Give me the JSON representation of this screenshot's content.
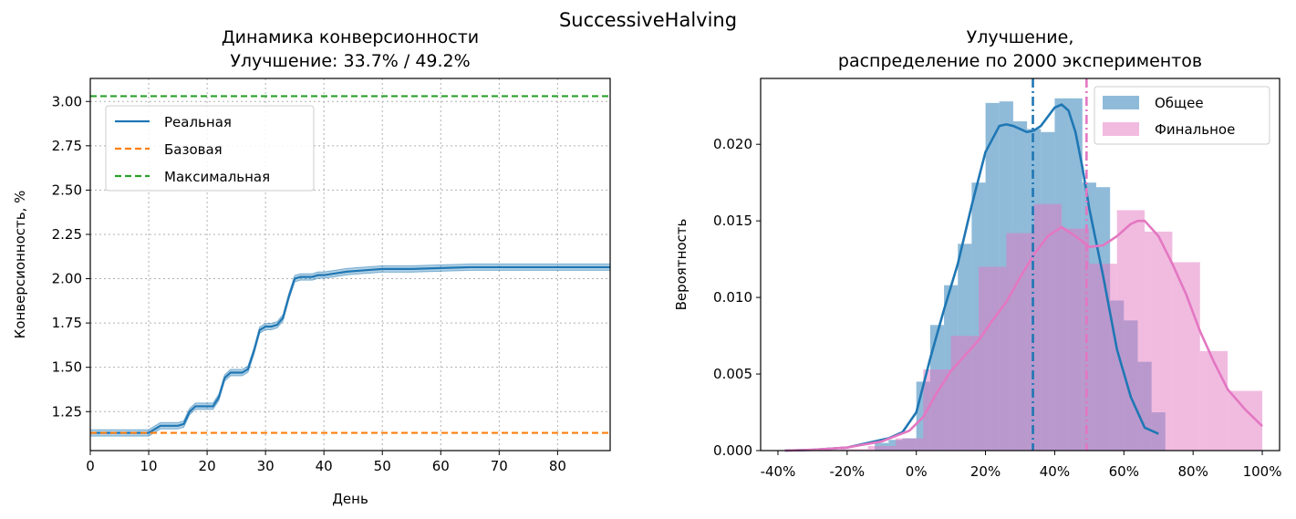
{
  "suptitle": "SuccessiveHalving",
  "colors": {
    "real": "#1f77b4",
    "base": "#ff7f0e",
    "max": "#2ca02c",
    "overall": "#1f77b4",
    "final": "#e377c2"
  },
  "chart_data": [
    {
      "type": "line",
      "title": "Динамика конверсионности",
      "subtitle": "Улучшение: 33.7% / 49.2%",
      "xlabel": "День",
      "ylabel": "Конверсионность, %",
      "xlim": [
        0,
        89
      ],
      "ylim": [
        1.03,
        3.13
      ],
      "xticks": [
        0,
        10,
        20,
        30,
        40,
        50,
        60,
        70,
        80
      ],
      "yticks": [
        "1.25",
        "1.50",
        "1.75",
        "2.00",
        "2.25",
        "2.50",
        "2.75",
        "3.00"
      ],
      "grid": true,
      "legend_position": "upper-left",
      "series": [
        {
          "name": "Реальная",
          "style": "solid",
          "color": "#1f77b4",
          "x": [
            0,
            2,
            4,
            6,
            8,
            10,
            11,
            12,
            13,
            14,
            15,
            16,
            17,
            18,
            19,
            20,
            21,
            22,
            23,
            24,
            25,
            26,
            27,
            28,
            29,
            30,
            31,
            32,
            33,
            34,
            35,
            36,
            37,
            38,
            39,
            40,
            42,
            44,
            46,
            48,
            50,
            55,
            60,
            65,
            70,
            75,
            80,
            85,
            89
          ],
          "y": [
            1.13,
            1.13,
            1.13,
            1.13,
            1.13,
            1.13,
            1.15,
            1.17,
            1.17,
            1.17,
            1.17,
            1.18,
            1.25,
            1.28,
            1.28,
            1.28,
            1.28,
            1.33,
            1.44,
            1.47,
            1.47,
            1.47,
            1.49,
            1.59,
            1.71,
            1.73,
            1.73,
            1.74,
            1.78,
            1.9,
            2.0,
            2.01,
            2.01,
            2.01,
            2.02,
            2.02,
            2.03,
            2.04,
            2.045,
            2.05,
            2.055,
            2.055,
            2.06,
            2.065,
            2.065,
            2.065,
            2.065,
            2.065,
            2.065
          ]
        },
        {
          "name": "Базовая",
          "style": "dashed",
          "color": "#ff7f0e",
          "x": [
            0,
            89
          ],
          "y": [
            1.13,
            1.13
          ]
        },
        {
          "name": "Максимальная",
          "style": "dashed",
          "color": "#2ca02c",
          "x": [
            0,
            89
          ],
          "y": [
            3.03,
            3.03
          ]
        }
      ]
    },
    {
      "type": "bar",
      "title": "Улучшение,",
      "subtitle": "распределение по 2000 экспериментов",
      "xlabel": "",
      "ylabel": "Вероятность",
      "xlim": [
        -45,
        105
      ],
      "ylim": [
        0,
        0.0243
      ],
      "xticks": [
        "-40%",
        "-20%",
        "0%",
        "20%",
        "40%",
        "60%",
        "80%",
        "100%"
      ],
      "yticks": [
        "0.000",
        "0.005",
        "0.010",
        "0.015",
        "0.020"
      ],
      "legend_position": "upper-right",
      "series": [
        {
          "name": "Общее",
          "color": "#1f77b4",
          "bins": [
            -12,
            -8,
            -4,
            0,
            4,
            8,
            12,
            16,
            20,
            24,
            28,
            32,
            36,
            40,
            44,
            48,
            52,
            56,
            60,
            64,
            68,
            72
          ],
          "values": [
            0.0005,
            0.0007,
            0.0008,
            0.0045,
            0.0082,
            0.0108,
            0.0135,
            0.0175,
            0.0227,
            0.0228,
            0.0215,
            0.021,
            0.0208,
            0.023,
            0.023,
            0.0175,
            0.0172,
            0.0098,
            0.0085,
            0.0058,
            0.0025
          ],
          "kde_x": [
            -38,
            -30,
            -20,
            -12,
            -8,
            -4,
            0,
            4,
            8,
            12,
            16,
            20,
            24,
            26,
            28,
            30,
            32,
            34,
            36,
            38,
            40,
            42,
            44,
            46,
            48,
            50,
            54,
            58,
            62,
            66,
            70
          ],
          "kde_y": [
            0.0,
            5e-05,
            0.0002,
            0.0006,
            0.0008,
            0.0012,
            0.0025,
            0.006,
            0.0092,
            0.0122,
            0.016,
            0.0195,
            0.0212,
            0.0213,
            0.0212,
            0.021,
            0.0208,
            0.0209,
            0.0212,
            0.0218,
            0.0224,
            0.0226,
            0.0222,
            0.0208,
            0.0185,
            0.0158,
            0.0114,
            0.0066,
            0.0035,
            0.0015,
            0.0011
          ]
        },
        {
          "name": "Финальное",
          "color": "#e377c2",
          "bins": [
            -38,
            -30,
            -22,
            -14,
            -6,
            2,
            10,
            18,
            26,
            34,
            42,
            50,
            58,
            66,
            74,
            82,
            90,
            100
          ],
          "values": [
            5e-05,
            5e-05,
            0.0001,
            0.0003,
            0.0008,
            0.0053,
            0.0075,
            0.012,
            0.0142,
            0.0161,
            0.0145,
            0.0122,
            0.0157,
            0.0143,
            0.0123,
            0.0065,
            0.0039,
            0.003
          ],
          "kde_x": [
            -38,
            -30,
            -20,
            -10,
            -2,
            2,
            6,
            10,
            14,
            18,
            22,
            26,
            30,
            34,
            38,
            42,
            46,
            50,
            54,
            58,
            62,
            64,
            66,
            70,
            74,
            78,
            82,
            86,
            90,
            95,
            100
          ],
          "kde_y": [
            0.0,
            5e-05,
            0.0002,
            0.0006,
            0.0013,
            0.0022,
            0.0038,
            0.0052,
            0.0062,
            0.0072,
            0.0085,
            0.0097,
            0.0113,
            0.0128,
            0.014,
            0.0146,
            0.014,
            0.0133,
            0.0134,
            0.014,
            0.0148,
            0.015,
            0.015,
            0.014,
            0.0122,
            0.0102,
            0.0078,
            0.0058,
            0.004,
            0.0027,
            0.0016
          ]
        }
      ],
      "vlines": [
        {
          "x": 33.7,
          "color": "#1f77b4",
          "style": "dashdot"
        },
        {
          "x": 49.2,
          "color": "#e377c2",
          "style": "dashdot"
        }
      ]
    }
  ]
}
